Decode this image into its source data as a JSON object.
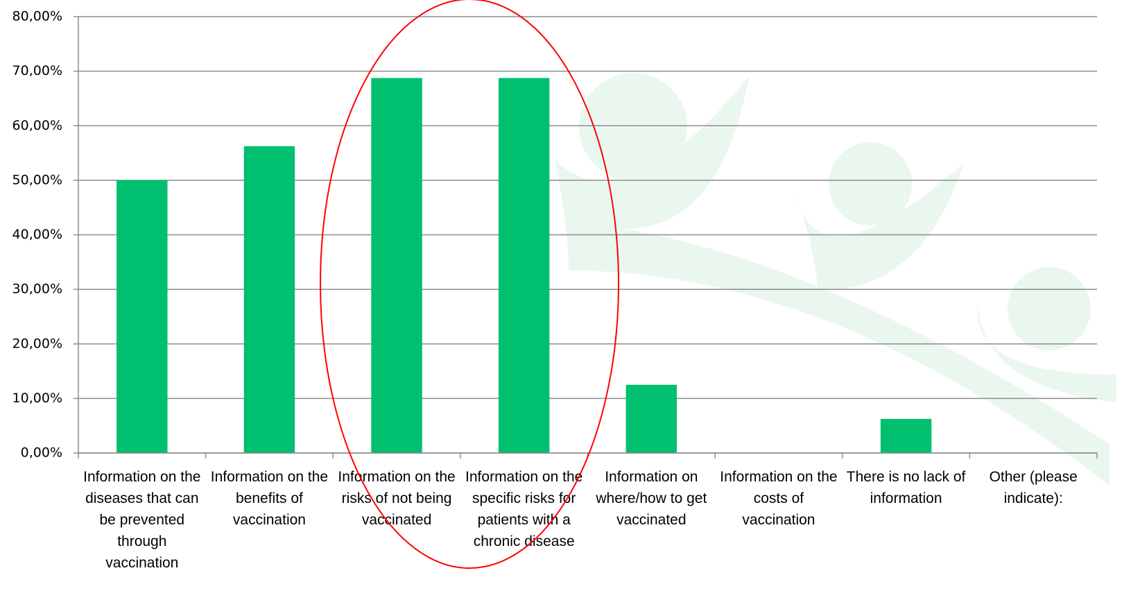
{
  "chart_data": {
    "type": "bar",
    "categories": [
      "Information on the diseases that can be prevented through vaccination",
      "Information on the benefits of vaccination",
      "Information on the risks of not being vaccinated",
      "Information on the specific risks for patients with a chronic disease",
      "Information on where/how to get vaccinated",
      "Information on the costs of vaccination",
      "There is no lack of information",
      "Other (please indicate):"
    ],
    "values": [
      50,
      56.25,
      68.75,
      68.75,
      12.5,
      0,
      6.25,
      0
    ],
    "color": "#00bf6f",
    "ylim": [
      0,
      80
    ],
    "yticks": [
      {
        "value": 0,
        "label": "0,00%"
      },
      {
        "value": 10,
        "label": "10,00%"
      },
      {
        "value": 20,
        "label": "20,00%"
      },
      {
        "value": 30,
        "label": "30,00%"
      },
      {
        "value": 40,
        "label": "40,00%"
      },
      {
        "value": 50,
        "label": "50,00%"
      },
      {
        "value": 60,
        "label": "60,00%"
      },
      {
        "value": 70,
        "label": "70,00%"
      },
      {
        "value": 80,
        "label": "80,00%"
      }
    ],
    "grid": true
  }
}
